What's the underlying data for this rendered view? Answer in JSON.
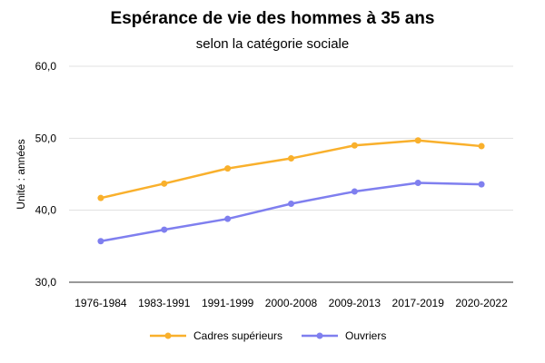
{
  "chart_data": {
    "type": "line",
    "title": "Espérance de vie des hommes à 35 ans",
    "subtitle": "selon la catégorie sociale",
    "ylabel": "Unité : années",
    "xlabel": "",
    "categories": [
      "1976-1984",
      "1983-1991",
      "1991-1999",
      "2000-2008",
      "2009-2013",
      "2017-2019",
      "2020-2022"
    ],
    "series": [
      {
        "name": "Cadres supérieurs",
        "color": "#F9B02C",
        "values": [
          41.7,
          43.7,
          45.8,
          47.2,
          49.0,
          49.7,
          48.9
        ]
      },
      {
        "name": "Ouvriers",
        "color": "#7F7FEF",
        "values": [
          35.7,
          37.3,
          38.8,
          40.9,
          42.6,
          43.8,
          43.6
        ]
      }
    ],
    "ylim": [
      30,
      60
    ],
    "yticks": [
      30,
      40,
      50,
      60
    ],
    "ytick_labels": [
      "30,0",
      "40,0",
      "50,0",
      "60,0"
    ],
    "grid": true,
    "legend_position": "bottom"
  }
}
